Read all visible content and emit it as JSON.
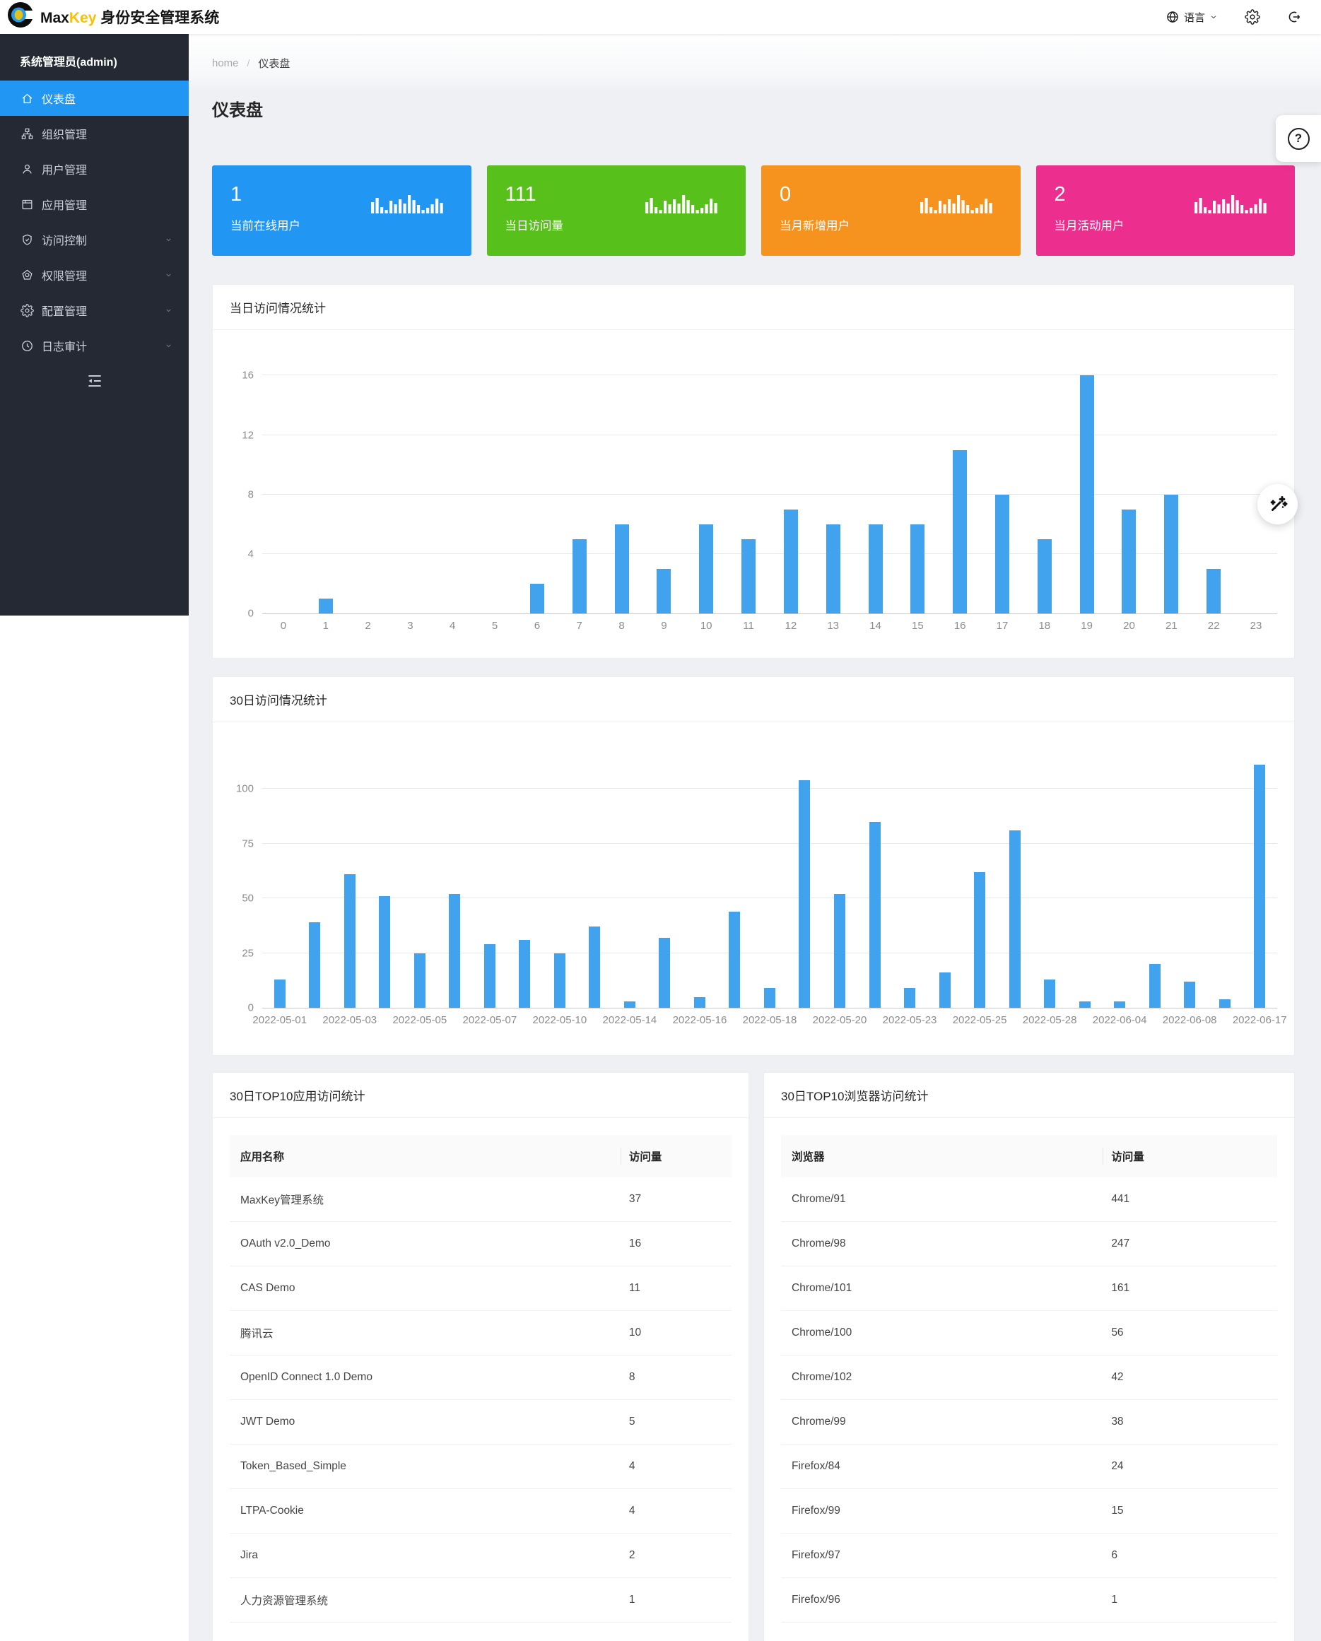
{
  "navbar": {
    "brand": {
      "max": "Max",
      "key": "Key",
      "suffix": "身份安全管理系统"
    },
    "language": {
      "label": "语言"
    }
  },
  "sidebar": {
    "user_title": "系统管理员(admin)",
    "items": [
      {
        "label": "仪表盘",
        "icon": "home-icon",
        "active": true,
        "has_children": false
      },
      {
        "label": "组织管理",
        "icon": "org-icon",
        "active": false,
        "has_children": false
      },
      {
        "label": "用户管理",
        "icon": "user-icon",
        "active": false,
        "has_children": false
      },
      {
        "label": "应用管理",
        "icon": "apps-icon",
        "active": false,
        "has_children": false
      },
      {
        "label": "访问控制",
        "icon": "shield-check-icon",
        "active": false,
        "has_children": true
      },
      {
        "label": "权限管理",
        "icon": "medal-icon",
        "active": false,
        "has_children": true
      },
      {
        "label": "配置管理",
        "icon": "gear-icon",
        "active": false,
        "has_children": true
      },
      {
        "label": "日志审计",
        "icon": "clock-icon",
        "active": false,
        "has_children": true
      }
    ]
  },
  "breadcrumb": {
    "items": [
      "home",
      "仪表盘"
    ],
    "separator": "/"
  },
  "page_title": "仪表盘",
  "stat_cards": [
    {
      "value": "1",
      "label": "当前在线用户",
      "color": "#2196f3"
    },
    {
      "value": "111",
      "label": "当日访问量",
      "color": "#57c01a"
    },
    {
      "value": "0",
      "label": "当月新增用户",
      "color": "#f6921e"
    },
    {
      "value": "2",
      "label": "当月活动用户",
      "color": "#ec2f8f"
    }
  ],
  "chart_data": [
    {
      "type": "bar",
      "title": "当日访问情况统计",
      "categories": [
        "0",
        "1",
        "2",
        "3",
        "4",
        "5",
        "6",
        "7",
        "8",
        "9",
        "10",
        "11",
        "12",
        "13",
        "14",
        "15",
        "16",
        "17",
        "18",
        "19",
        "20",
        "21",
        "22",
        "23"
      ],
      "values": [
        0,
        1,
        0,
        0,
        0,
        0,
        2,
        5,
        6,
        3,
        6,
        5,
        7,
        6,
        6,
        6,
        11,
        8,
        5,
        16,
        7,
        8,
        3,
        0
      ],
      "xlabel": "",
      "ylabel": "",
      "ylim": [
        0,
        17.3
      ],
      "yticks": [
        0,
        4,
        8,
        12,
        16
      ],
      "grid": true,
      "legend": "none",
      "bar_color": "#41a2ee"
    },
    {
      "type": "bar",
      "title": "30日访问情况统计",
      "categories": [
        "2022-05-01",
        "",
        "2022-05-03",
        "",
        "2022-05-05",
        "",
        "2022-05-07",
        "",
        "2022-05-10",
        "",
        "2022-05-14",
        "",
        "2022-05-16",
        "",
        "2022-05-18",
        "",
        "2022-05-20",
        "",
        "2022-05-23",
        "",
        "2022-05-25",
        "",
        "2022-05-28",
        "",
        "2022-06-04",
        "",
        "2022-06-08",
        "",
        "2022-06-17"
      ],
      "values": [
        13,
        39,
        61,
        51,
        25,
        52,
        29,
        31,
        25,
        37,
        3,
        32,
        5,
        44,
        9,
        104,
        52,
        85,
        9,
        16,
        62,
        81,
        13,
        3,
        3,
        20,
        12,
        4,
        111
      ],
      "xlabel": "",
      "ylabel": "",
      "ylim": [
        0,
        121
      ],
      "yticks": [
        0,
        25,
        50,
        75,
        100
      ],
      "grid": true,
      "legend": "none",
      "bar_color": "#41a2ee"
    }
  ],
  "tables": [
    {
      "title": "30日TOP10应用访问统计",
      "columns": [
        "应用名称",
        "访问量"
      ],
      "rows": [
        [
          "MaxKey管理系统",
          "37"
        ],
        [
          "OAuth v2.0_Demo",
          "16"
        ],
        [
          "CAS Demo",
          "11"
        ],
        [
          "腾讯云",
          "10"
        ],
        [
          "OpenID Connect 1.0 Demo",
          "8"
        ],
        [
          "JWT Demo",
          "5"
        ],
        [
          "Token_Based_Simple",
          "4"
        ],
        [
          "LTPA-Cookie",
          "4"
        ],
        [
          "Jira",
          "2"
        ],
        [
          "人力资源管理系统",
          "1"
        ]
      ]
    },
    {
      "title": "30日TOP10浏览器访问统计",
      "columns": [
        "浏览器",
        "访问量"
      ],
      "rows": [
        [
          "Chrome/91",
          "441"
        ],
        [
          "Chrome/98",
          "247"
        ],
        [
          "Chrome/101",
          "161"
        ],
        [
          "Chrome/100",
          "56"
        ],
        [
          "Chrome/102",
          "42"
        ],
        [
          "Chrome/99",
          "38"
        ],
        [
          "Firefox/84",
          "24"
        ],
        [
          "Firefox/99",
          "15"
        ],
        [
          "Firefox/97",
          "6"
        ],
        [
          "Firefox/96",
          "1"
        ]
      ]
    }
  ],
  "floating": {
    "help_label": "?"
  }
}
